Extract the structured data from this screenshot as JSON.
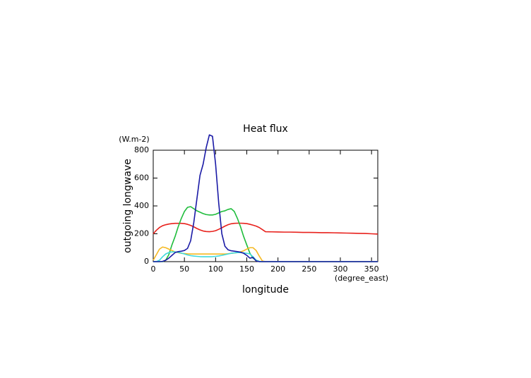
{
  "chart_data": {
    "type": "line",
    "title": "Heat flux",
    "y_label": "outgoing longwave",
    "y_unit": "(W.m-2)",
    "x_label": "longitude",
    "x_unit": "(degree_east)",
    "x": [
      0,
      5,
      10,
      15,
      20,
      25,
      30,
      35,
      40,
      45,
      50,
      55,
      60,
      65,
      70,
      75,
      80,
      85,
      90,
      95,
      100,
      105,
      110,
      115,
      120,
      125,
      130,
      135,
      140,
      145,
      150,
      155,
      160,
      165,
      170,
      175,
      180,
      190,
      200,
      210,
      220,
      230,
      240,
      250,
      260,
      270,
      280,
      290,
      300,
      310,
      320,
      330,
      340,
      350,
      360
    ],
    "xlim": [
      0,
      360
    ],
    "xticks": [
      0,
      50,
      100,
      150,
      200,
      250,
      300,
      350
    ],
    "ylim": [
      0,
      800
    ],
    "yticks": [
      0,
      200,
      400,
      600,
      800
    ],
    "series": [
      {
        "color": "#e8211c",
        "values": [
          200,
          225,
          245,
          258,
          265,
          270,
          273,
          275,
          275,
          275,
          273,
          268,
          260,
          250,
          238,
          228,
          220,
          216,
          215,
          217,
          222,
          232,
          243,
          255,
          265,
          272,
          275,
          276,
          276,
          275,
          273,
          268,
          262,
          255,
          245,
          230,
          215,
          214,
          213,
          212,
          212,
          211,
          210,
          210,
          209,
          208,
          208,
          207,
          206,
          205,
          204,
          203,
          202,
          200,
          198
        ]
      },
      {
        "color": "#1fbd3c",
        "values": [
          0,
          0,
          0,
          0,
          10,
          50,
          120,
          180,
          250,
          310,
          360,
          390,
          395,
          380,
          365,
          355,
          345,
          338,
          335,
          335,
          340,
          350,
          360,
          365,
          375,
          380,
          360,
          310,
          250,
          180,
          120,
          60,
          25,
          10,
          2,
          0,
          0,
          0,
          0,
          0,
          0,
          0,
          0,
          0,
          0,
          0,
          0,
          0,
          0,
          0,
          0,
          0,
          0,
          0,
          0
        ]
      },
      {
        "color": "#f5b922",
        "values": [
          10,
          50,
          90,
          105,
          100,
          90,
          80,
          70,
          65,
          60,
          58,
          56,
          55,
          55,
          55,
          55,
          55,
          55,
          55,
          55,
          55,
          55,
          55,
          55,
          57,
          60,
          62,
          65,
          70,
          78,
          90,
          100,
          100,
          80,
          40,
          5,
          0,
          0,
          0,
          0,
          0,
          0,
          0,
          0,
          0,
          0,
          0,
          0,
          0,
          0,
          0,
          0,
          0,
          0,
          0
        ]
      },
      {
        "color": "#3fd9dc",
        "values": [
          0,
          0,
          10,
          35,
          55,
          65,
          70,
          70,
          67,
          62,
          55,
          48,
          43,
          40,
          38,
          36,
          35,
          35,
          35,
          36,
          38,
          41,
          45,
          50,
          55,
          60,
          63,
          65,
          65,
          63,
          60,
          55,
          35,
          10,
          0,
          0,
          0,
          0,
          0,
          0,
          0,
          0,
          0,
          0,
          0,
          0,
          0,
          0,
          0,
          0,
          0,
          0,
          0,
          0,
          0
        ]
      },
      {
        "color": "#1a1aa6",
        "values": [
          0,
          0,
          0,
          2,
          10,
          25,
          45,
          65,
          72,
          75,
          80,
          95,
          150,
          280,
          450,
          620,
          700,
          820,
          910,
          900,
          700,
          420,
          200,
          110,
          85,
          78,
          75,
          72,
          68,
          60,
          45,
          25,
          30,
          5,
          0,
          0,
          0,
          0,
          0,
          0,
          0,
          0,
          0,
          0,
          0,
          0,
          0,
          0,
          0,
          0,
          0,
          0,
          0,
          0,
          0
        ]
      }
    ]
  }
}
